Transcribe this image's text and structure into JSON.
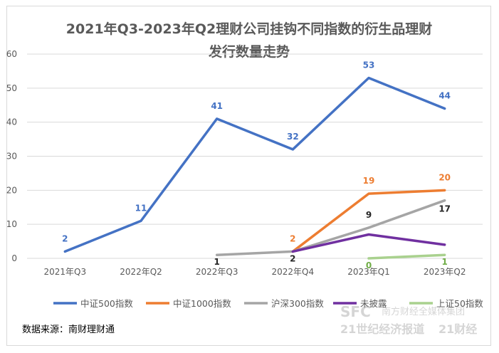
{
  "chart_data": {
    "type": "line",
    "title_line1": "2021年Q3-2023年Q2理财公司挂钩不同指数的衍生品理财",
    "title_line2": "发行数量走势",
    "categories": [
      "2021年Q3",
      "2022年Q2",
      "2022年Q3",
      "2022年Q4",
      "2023年Q1",
      "2023年Q2"
    ],
    "ylim": [
      0,
      60
    ],
    "yticks": [
      0,
      10,
      20,
      30,
      40,
      50,
      60
    ],
    "grid": true,
    "legend_position": "bottom",
    "series": [
      {
        "name": "中证500指数",
        "color": "#4472C4",
        "values": [
          2,
          11,
          41,
          32,
          53,
          44
        ]
      },
      {
        "name": "中证1000指数",
        "color": "#ED7D31",
        "values": [
          null,
          null,
          null,
          2,
          19,
          20
        ]
      },
      {
        "name": "沪深300指数",
        "color": "#A5A5A5",
        "values": [
          null,
          null,
          1,
          2,
          9,
          17
        ]
      },
      {
        "name": "未披露",
        "color": "#7030A0",
        "values": [
          null,
          null,
          null,
          2,
          7,
          4
        ]
      },
      {
        "name": "上证50指数",
        "color": "#A9D18E",
        "values": [
          null,
          null,
          null,
          null,
          0,
          1
        ]
      }
    ],
    "data_labels": [
      {
        "series": 0,
        "index": 0,
        "text": "2",
        "color": "#4472C4"
      },
      {
        "series": 0,
        "index": 1,
        "text": "11",
        "color": "#4472C4"
      },
      {
        "series": 0,
        "index": 2,
        "text": "41",
        "color": "#4472C4"
      },
      {
        "series": 0,
        "index": 3,
        "text": "32",
        "color": "#4472C4"
      },
      {
        "series": 0,
        "index": 4,
        "text": "53",
        "color": "#4472C4"
      },
      {
        "series": 0,
        "index": 5,
        "text": "44",
        "color": "#4472C4"
      },
      {
        "series": 1,
        "index": 3,
        "text": "2",
        "color": "#ED7D31"
      },
      {
        "series": 1,
        "index": 4,
        "text": "19",
        "color": "#ED7D31"
      },
      {
        "series": 1,
        "index": 5,
        "text": "20",
        "color": "#ED7D31"
      },
      {
        "series": 2,
        "index": 2,
        "text": "1",
        "color": "#262626"
      },
      {
        "series": 2,
        "index": 3,
        "text": "2",
        "color": "#262626"
      },
      {
        "series": 2,
        "index": 4,
        "text": "9",
        "color": "#262626"
      },
      {
        "series": 2,
        "index": 5,
        "text": "17",
        "color": "#262626"
      },
      {
        "series": 4,
        "index": 4,
        "text": "0",
        "color": "#70AD47"
      },
      {
        "series": 4,
        "index": 5,
        "text": "1",
        "color": "#70AD47"
      }
    ]
  },
  "source_text": "数据来源：南财理财通",
  "watermark": {
    "brand_mark": "SFC",
    "line1": "南方财经全媒体集团",
    "line2": "21世纪经济报道",
    "line3": "21财经"
  }
}
